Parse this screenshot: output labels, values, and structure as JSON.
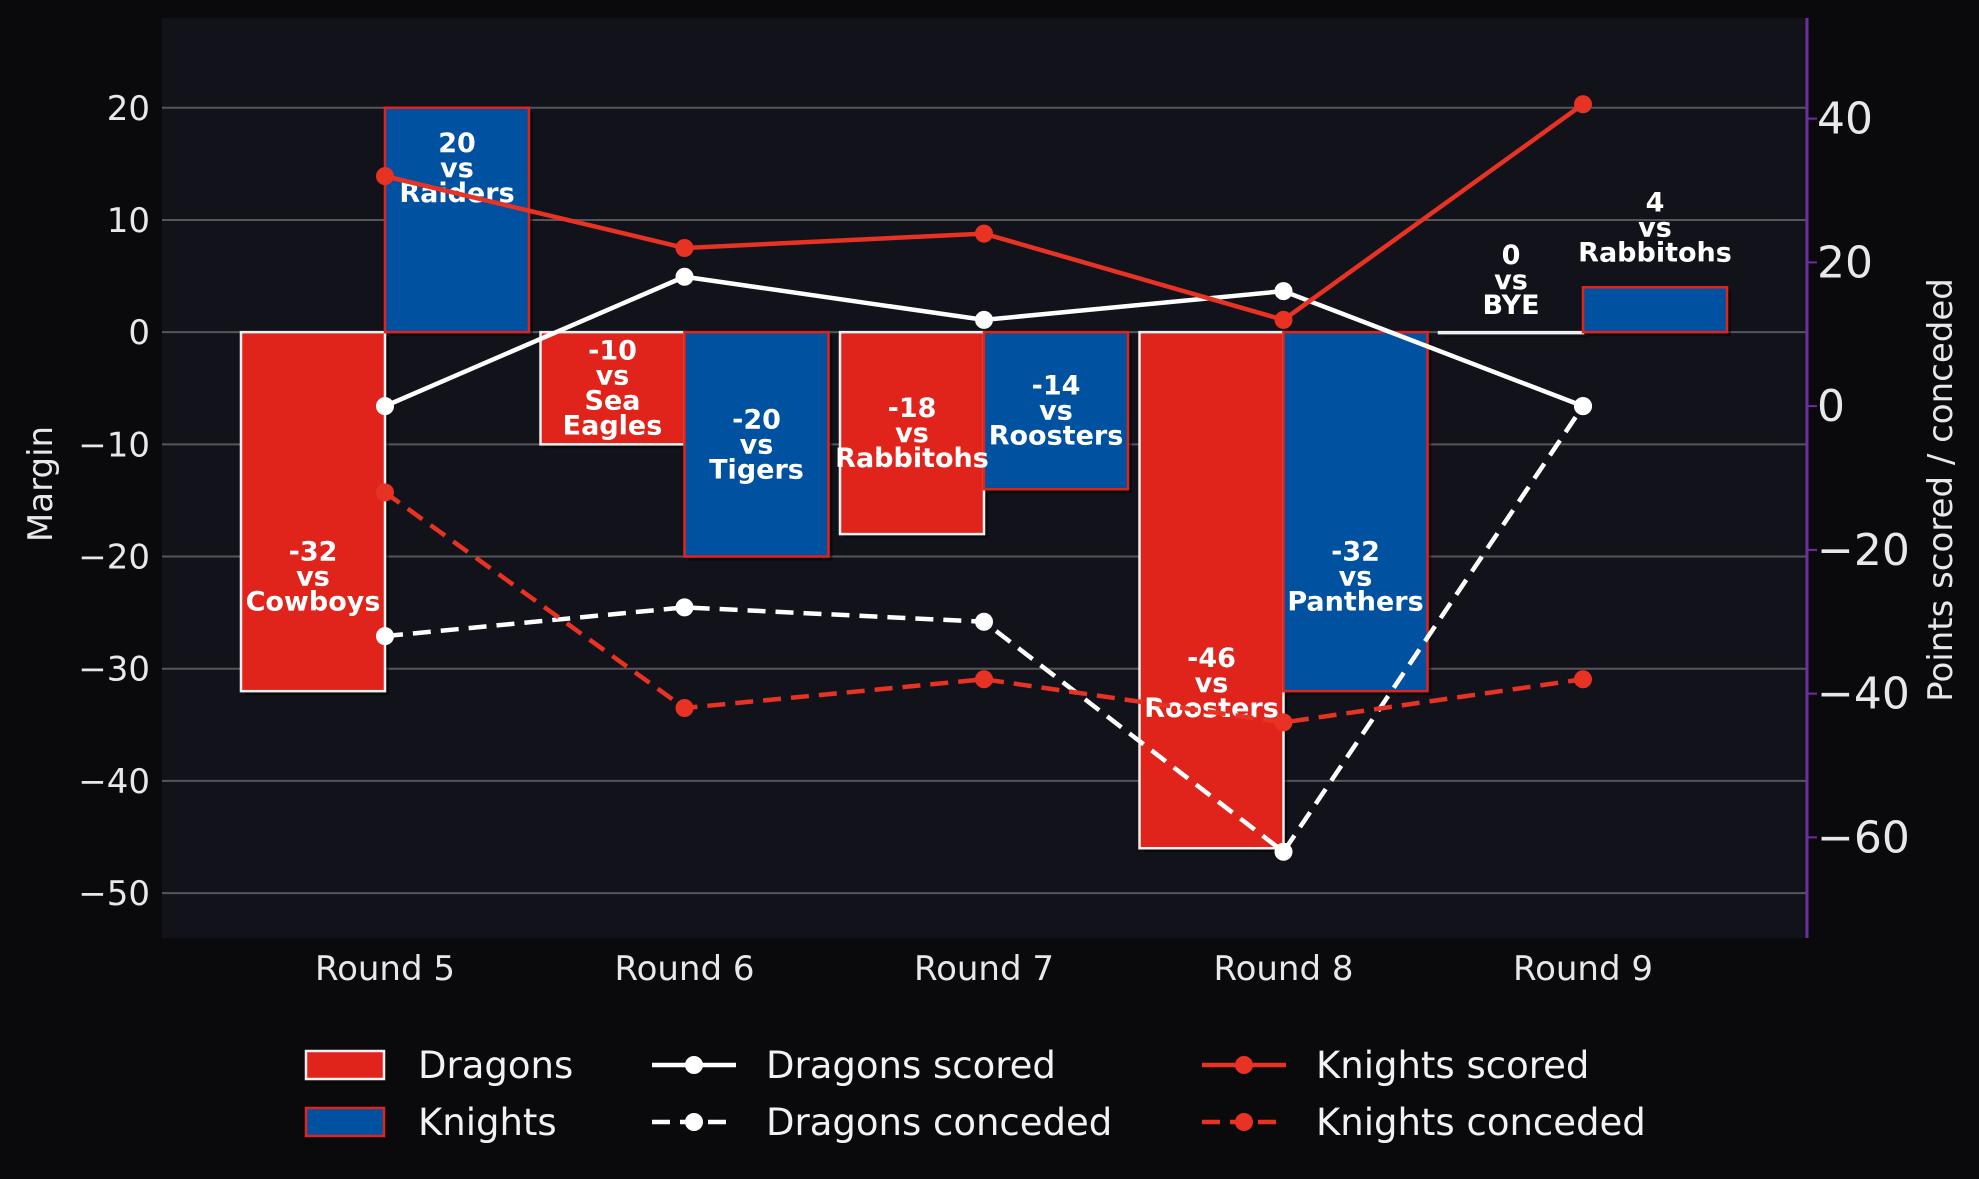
{
  "chart_data": {
    "type": "bar",
    "title": "",
    "xlabel": "",
    "ylabel": "Margin",
    "y2label": "Points scored / conceded",
    "categories": [
      "Round 5",
      "Round 6",
      "Round 7",
      "Round 8",
      "Round 9"
    ],
    "ylim": [
      -54,
      28
    ],
    "y2lim": [
      -74,
      54
    ],
    "yticks": [
      20,
      10,
      0,
      -10,
      -20,
      -30,
      -40,
      -50
    ],
    "y2ticks": [
      40,
      20,
      0,
      -20,
      -40,
      -60
    ],
    "grid": true,
    "legend_position": "bottom",
    "bar_series": [
      {
        "name": "Dragons",
        "color": "#e0241c",
        "edge": "#f0f0f0",
        "values": [
          -32,
          -10,
          -18,
          -46,
          0
        ],
        "labels": [
          [
            "-32",
            "vs",
            "Cowboys"
          ],
          [
            "-10",
            "vs",
            "Sea",
            "Eagles"
          ],
          [
            "-18",
            "vs",
            "Rabbitohs"
          ],
          [
            "-46",
            "vs",
            "Roosters"
          ],
          [
            "0",
            "vs",
            "BYE"
          ]
        ]
      },
      {
        "name": "Knights",
        "color": "#0051a0",
        "edge": "#e0241c",
        "values": [
          20,
          -20,
          -14,
          -32,
          4
        ],
        "labels": [
          [
            "20",
            "vs",
            "Raiders"
          ],
          [
            "-20",
            "vs",
            "Tigers"
          ],
          [
            "-14",
            "vs",
            "Roosters"
          ],
          [
            "-32",
            "vs",
            "Panthers"
          ],
          [
            "4",
            "vs",
            "Rabbitohs"
          ]
        ]
      }
    ],
    "line_series": [
      {
        "name": "Dragons scored",
        "color": "#ffffff",
        "dash": false,
        "axis": "right",
        "values": [
          0,
          18,
          12,
          16,
          0
        ]
      },
      {
        "name": "Dragons conceded",
        "color": "#ffffff",
        "dash": true,
        "axis": "right",
        "values": [
          -32,
          -28,
          -30,
          -62,
          0
        ]
      },
      {
        "name": "Knights scored",
        "color": "#e83224",
        "dash": false,
        "axis": "right",
        "values": [
          32,
          22,
          24,
          12,
          42
        ]
      },
      {
        "name": "Knights conceded",
        "color": "#e83224",
        "dash": true,
        "axis": "right",
        "values": [
          -12,
          -42,
          -38,
          -44,
          -38
        ]
      }
    ],
    "colors": {
      "page_background": "#0a0a0d",
      "plot_background": "#12131a",
      "grid": "#55565c",
      "right_spine": "#6b2fa0"
    }
  }
}
